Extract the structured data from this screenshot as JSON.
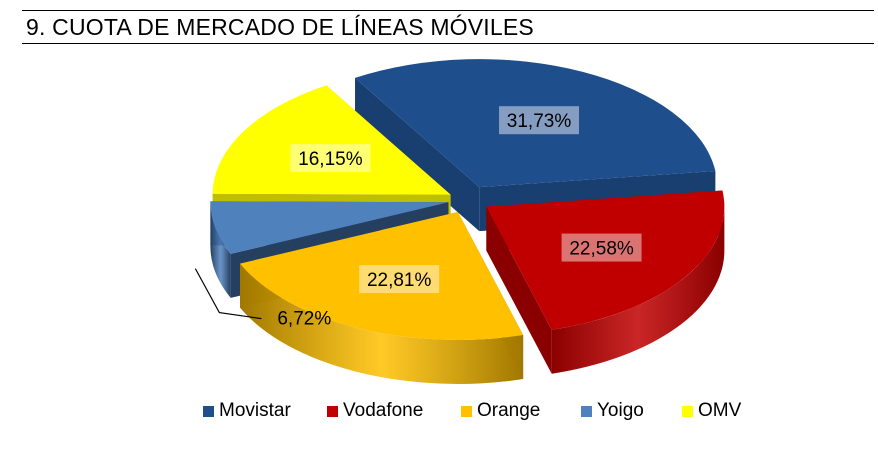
{
  "page": {
    "title": "9. CUOTA DE MERCADO DE LÍNEAS MÓVILES"
  },
  "chart_data": {
    "type": "pie",
    "title": "9. CUOTA DE MERCADO DE LÍNEAS MÓVILES",
    "legend_position": "bottom",
    "style": "3d-exploded",
    "slices": [
      {
        "name": "Movistar",
        "value": 31.73,
        "label": "31,73%",
        "color": "#1F4E8C",
        "side_color": "#193E70"
      },
      {
        "name": "Vodafone",
        "value": 22.58,
        "label": "22,58%",
        "color": "#C00000",
        "side_color": "#8A0000"
      },
      {
        "name": "Orange",
        "value": 22.81,
        "label": "22,81%",
        "color": "#FFC000",
        "side_color": "#A07800"
      },
      {
        "name": "Yoigo",
        "value": 6.72,
        "label": "6,72%",
        "color": "#4F81BD",
        "side_color": "#243F60"
      },
      {
        "name": "OMV",
        "value": 16.15,
        "label": "16,15%",
        "color": "#FFFF00",
        "side_color": "#BFBF00"
      }
    ]
  }
}
